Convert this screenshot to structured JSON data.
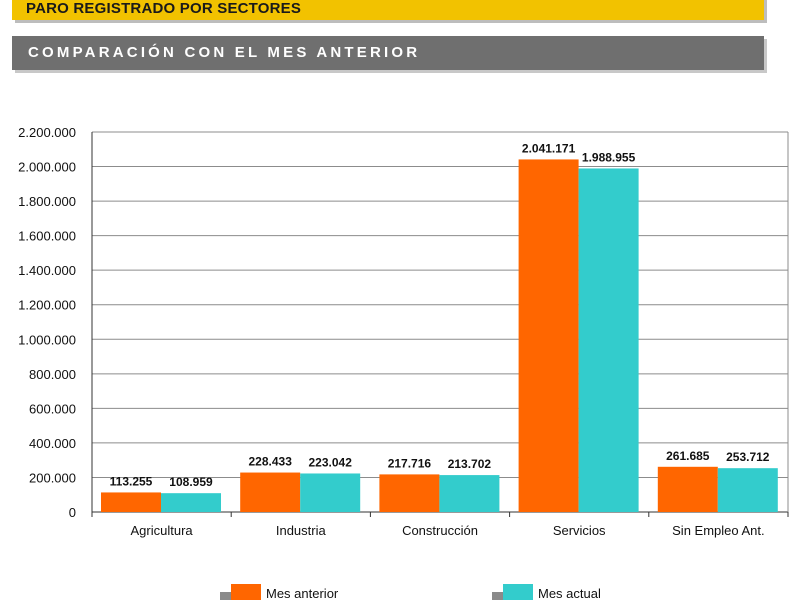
{
  "header": {
    "title": "PARO REGISTRADO POR SECTORES",
    "subtitle": "COMPARACIÓN CON EL MES ANTERIOR"
  },
  "colors": {
    "previous_month": "#ff6600",
    "current_month": "#33cccc",
    "gridline": "#8c8c8c"
  },
  "chart_data": {
    "type": "bar",
    "categories": [
      "Agricultura",
      "Industria",
      "Construcción",
      "Servicios",
      "Sin Empleo Ant."
    ],
    "series": [
      {
        "name": "Mes anterior",
        "values": [
          113255,
          228433,
          217716,
          2041171,
          261685
        ],
        "labels": [
          "113.255",
          "228.433",
          "217.716",
          "2.041.171",
          "261.685"
        ]
      },
      {
        "name": "Mes actual",
        "values": [
          108959,
          223042,
          213702,
          1988955,
          253712
        ],
        "labels": [
          "108.959",
          "223.042",
          "213.702",
          "1.988.955",
          "253.712"
        ]
      }
    ],
    "ylim": [
      0,
      2200000
    ],
    "yticks": [
      0,
      200000,
      400000,
      600000,
      800000,
      1000000,
      1200000,
      1400000,
      1600000,
      1800000,
      2000000,
      2200000
    ],
    "ytick_labels": [
      "0",
      "200.000",
      "400.000",
      "600.000",
      "800.000",
      "1.000.000",
      "1.200.000",
      "1.400.000",
      "1.600.000",
      "1.800.000",
      "2.000.000",
      "2.200.000"
    ],
    "grid": true,
    "legend_position": "bottom"
  }
}
